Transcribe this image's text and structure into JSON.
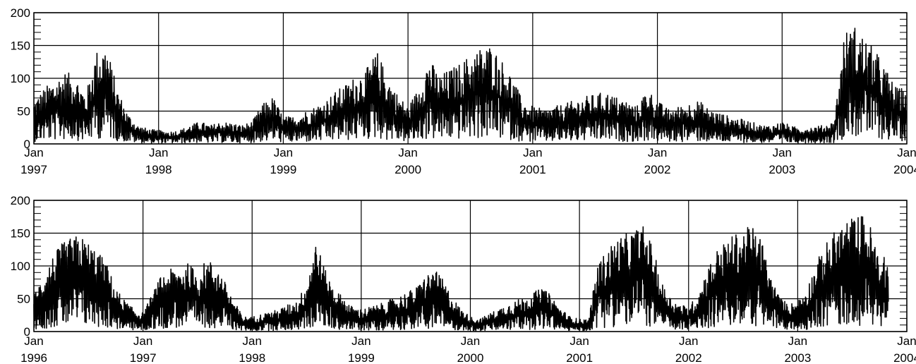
{
  "chart_data": [
    {
      "type": "line",
      "title": "",
      "xlabel": "",
      "ylabel": "",
      "xlim": [
        "1997-01",
        "2004-01"
      ],
      "ylim": [
        0,
        200
      ],
      "yticks": [
        0,
        50,
        100,
        150,
        200
      ],
      "xtick_labels": [
        {
          "month": "Jan",
          "year": "1997"
        },
        {
          "month": "Jan",
          "year": "1998"
        },
        {
          "month": "Jan",
          "year": "1999"
        },
        {
          "month": "Jan",
          "year": "2000"
        },
        {
          "month": "Jan",
          "year": "2001"
        },
        {
          "month": "Jan",
          "year": "2002"
        },
        {
          "month": "Jan",
          "year": "2003"
        },
        {
          "month": "Jan",
          "year": "2004"
        }
      ],
      "grid": true,
      "series": [
        {
          "values_approx_monthly": [
            {
              "x": "1997-01",
              "y": 35
            },
            {
              "x": "1997-02",
              "y": 45
            },
            {
              "x": "1997-03",
              "y": 52
            },
            {
              "x": "1997-04",
              "y": 58
            },
            {
              "x": "1997-05",
              "y": 55
            },
            {
              "x": "1997-06",
              "y": 40
            },
            {
              "x": "1997-07",
              "y": 75
            },
            {
              "x": "1997-08",
              "y": 80
            },
            {
              "x": "1997-09",
              "y": 45
            },
            {
              "x": "1997-10",
              "y": 25
            },
            {
              "x": "1997-11",
              "y": 15
            },
            {
              "x": "1997-12",
              "y": 12
            },
            {
              "x": "1998-01",
              "y": 11
            },
            {
              "x": "1998-02",
              "y": 10
            },
            {
              "x": "1998-03",
              "y": 11
            },
            {
              "x": "1998-04",
              "y": 15
            },
            {
              "x": "1998-05",
              "y": 18
            },
            {
              "x": "1998-06",
              "y": 15
            },
            {
              "x": "1998-07",
              "y": 18
            },
            {
              "x": "1998-08",
              "y": 17
            },
            {
              "x": "1998-09",
              "y": 15
            },
            {
              "x": "1998-10",
              "y": 18
            },
            {
              "x": "1998-11",
              "y": 32
            },
            {
              "x": "1998-12",
              "y": 38
            },
            {
              "x": "1999-01",
              "y": 22
            },
            {
              "x": "1999-02",
              "y": 22
            },
            {
              "x": "1999-03",
              "y": 26
            },
            {
              "x": "1999-04",
              "y": 30
            },
            {
              "x": "1999-05",
              "y": 35
            },
            {
              "x": "1999-06",
              "y": 42
            },
            {
              "x": "1999-07",
              "y": 48
            },
            {
              "x": "1999-08",
              "y": 55
            },
            {
              "x": "1999-09",
              "y": 60
            },
            {
              "x": "1999-10",
              "y": 75
            },
            {
              "x": "1999-11",
              "y": 55
            },
            {
              "x": "1999-12",
              "y": 40
            },
            {
              "x": "2000-01",
              "y": 30
            },
            {
              "x": "2000-02",
              "y": 45
            },
            {
              "x": "2000-03",
              "y": 70
            },
            {
              "x": "2000-04",
              "y": 55
            },
            {
              "x": "2000-05",
              "y": 60
            },
            {
              "x": "2000-06",
              "y": 65
            },
            {
              "x": "2000-07",
              "y": 72
            },
            {
              "x": "2000-08",
              "y": 78
            },
            {
              "x": "2000-09",
              "y": 80
            },
            {
              "x": "2000-10",
              "y": 68
            },
            {
              "x": "2000-11",
              "y": 55
            },
            {
              "x": "2000-12",
              "y": 35
            },
            {
              "x": "2001-01",
              "y": 30
            },
            {
              "x": "2001-02",
              "y": 28
            },
            {
              "x": "2001-03",
              "y": 30
            },
            {
              "x": "2001-04",
              "y": 32
            },
            {
              "x": "2001-05",
              "y": 35
            },
            {
              "x": "2001-06",
              "y": 38
            },
            {
              "x": "2001-07",
              "y": 40
            },
            {
              "x": "2001-08",
              "y": 42
            },
            {
              "x": "2001-09",
              "y": 38
            },
            {
              "x": "2001-10",
              "y": 35
            },
            {
              "x": "2001-11",
              "y": 30
            },
            {
              "x": "2001-12",
              "y": 45
            },
            {
              "x": "2002-01",
              "y": 35
            },
            {
              "x": "2002-02",
              "y": 28
            },
            {
              "x": "2002-03",
              "y": 30
            },
            {
              "x": "2002-04",
              "y": 33
            },
            {
              "x": "2002-05",
              "y": 35
            },
            {
              "x": "2002-06",
              "y": 28
            },
            {
              "x": "2002-07",
              "y": 25
            },
            {
              "x": "2002-08",
              "y": 22
            },
            {
              "x": "2002-09",
              "y": 20
            },
            {
              "x": "2002-10",
              "y": 18
            },
            {
              "x": "2002-11",
              "y": 15
            },
            {
              "x": "2002-12",
              "y": 15
            },
            {
              "x": "2003-01",
              "y": 18
            },
            {
              "x": "2003-02",
              "y": 14
            },
            {
              "x": "2003-03",
              "y": 13
            },
            {
              "x": "2003-04",
              "y": 14
            },
            {
              "x": "2003-05",
              "y": 15
            },
            {
              "x": "2003-06",
              "y": 18
            },
            {
              "x": "2003-07",
              "y": 90
            },
            {
              "x": "2003-08",
              "y": 95
            },
            {
              "x": "2003-09",
              "y": 85
            },
            {
              "x": "2003-10",
              "y": 75
            },
            {
              "x": "2003-11",
              "y": 60
            },
            {
              "x": "2003-12",
              "y": 45
            }
          ]
        }
      ]
    },
    {
      "type": "line",
      "title": "",
      "xlabel": "",
      "ylabel": "",
      "xlim": [
        "1996-01",
        "2004-01"
      ],
      "ylim": [
        0,
        200
      ],
      "yticks": [
        0,
        50,
        100,
        150,
        200
      ],
      "xtick_labels": [
        {
          "month": "Jan",
          "year": "1996"
        },
        {
          "month": "Jan",
          "year": "1997"
        },
        {
          "month": "Jan",
          "year": "1998"
        },
        {
          "month": "Jan",
          "year": "1999"
        },
        {
          "month": "Jan",
          "year": "2000"
        },
        {
          "month": "Jan",
          "year": "2001"
        },
        {
          "month": "Jan",
          "year": "2002"
        },
        {
          "month": "Jan",
          "year": "2003"
        },
        {
          "month": "Jan",
          "year": "2004"
        }
      ],
      "grid": true,
      "series": [
        {
          "values_approx_monthly": [
            {
              "x": "1996-01",
              "y": 30
            },
            {
              "x": "1996-02",
              "y": 45
            },
            {
              "x": "1996-03",
              "y": 60
            },
            {
              "x": "1996-04",
              "y": 70
            },
            {
              "x": "1996-05",
              "y": 75
            },
            {
              "x": "1996-06",
              "y": 78
            },
            {
              "x": "1996-07",
              "y": 72
            },
            {
              "x": "1996-08",
              "y": 65
            },
            {
              "x": "1996-09",
              "y": 55
            },
            {
              "x": "1996-10",
              "y": 35
            },
            {
              "x": "1996-11",
              "y": 25
            },
            {
              "x": "1996-12",
              "y": 18
            },
            {
              "x": "1997-01",
              "y": 15
            },
            {
              "x": "1997-02",
              "y": 30
            },
            {
              "x": "1997-03",
              "y": 45
            },
            {
              "x": "1997-04",
              "y": 50
            },
            {
              "x": "1997-05",
              "y": 52
            },
            {
              "x": "1997-06",
              "y": 55
            },
            {
              "x": "1997-07",
              "y": 48
            },
            {
              "x": "1997-08",
              "y": 58
            },
            {
              "x": "1997-09",
              "y": 55
            },
            {
              "x": "1997-10",
              "y": 40
            },
            {
              "x": "1997-11",
              "y": 25
            },
            {
              "x": "1997-12",
              "y": 12
            },
            {
              "x": "1998-01",
              "y": 12
            },
            {
              "x": "1998-02",
              "y": 14
            },
            {
              "x": "1998-03",
              "y": 16
            },
            {
              "x": "1998-04",
              "y": 18
            },
            {
              "x": "1998-05",
              "y": 22
            },
            {
              "x": "1998-06",
              "y": 25
            },
            {
              "x": "1998-07",
              "y": 40
            },
            {
              "x": "1998-08",
              "y": 75
            },
            {
              "x": "1998-09",
              "y": 50
            },
            {
              "x": "1998-10",
              "y": 35
            },
            {
              "x": "1998-11",
              "y": 28
            },
            {
              "x": "1998-12",
              "y": 20
            },
            {
              "x": "1999-01",
              "y": 18
            },
            {
              "x": "1999-02",
              "y": 20
            },
            {
              "x": "1999-03",
              "y": 22
            },
            {
              "x": "1999-04",
              "y": 25
            },
            {
              "x": "1999-05",
              "y": 28
            },
            {
              "x": "1999-06",
              "y": 32
            },
            {
              "x": "1999-07",
              "y": 35
            },
            {
              "x": "1999-08",
              "y": 45
            },
            {
              "x": "1999-09",
              "y": 50
            },
            {
              "x": "1999-10",
              "y": 42
            },
            {
              "x": "1999-11",
              "y": 28
            },
            {
              "x": "1999-12",
              "y": 18
            },
            {
              "x": "2000-01",
              "y": 12
            },
            {
              "x": "2000-02",
              "y": 10
            },
            {
              "x": "2000-03",
              "y": 14
            },
            {
              "x": "2000-04",
              "y": 18
            },
            {
              "x": "2000-05",
              "y": 22
            },
            {
              "x": "2000-06",
              "y": 25
            },
            {
              "x": "2000-07",
              "y": 28
            },
            {
              "x": "2000-08",
              "y": 32
            },
            {
              "x": "2000-09",
              "y": 35
            },
            {
              "x": "2000-10",
              "y": 28
            },
            {
              "x": "2000-11",
              "y": 18
            },
            {
              "x": "2000-12",
              "y": 12
            },
            {
              "x": "2001-01",
              "y": 10
            },
            {
              "x": "2001-02",
              "y": 10
            },
            {
              "x": "2001-03",
              "y": 55
            },
            {
              "x": "2001-04",
              "y": 65
            },
            {
              "x": "2001-05",
              "y": 75
            },
            {
              "x": "2001-06",
              "y": 78
            },
            {
              "x": "2001-07",
              "y": 82
            },
            {
              "x": "2001-08",
              "y": 85
            },
            {
              "x": "2001-09",
              "y": 70
            },
            {
              "x": "2001-10",
              "y": 40
            },
            {
              "x": "2001-11",
              "y": 28
            },
            {
              "x": "2001-12",
              "y": 22
            },
            {
              "x": "2002-01",
              "y": 20
            },
            {
              "x": "2002-02",
              "y": 30
            },
            {
              "x": "2002-03",
              "y": 50
            },
            {
              "x": "2002-04",
              "y": 65
            },
            {
              "x": "2002-05",
              "y": 72
            },
            {
              "x": "2002-06",
              "y": 78
            },
            {
              "x": "2002-07",
              "y": 82
            },
            {
              "x": "2002-08",
              "y": 85
            },
            {
              "x": "2002-09",
              "y": 75
            },
            {
              "x": "2002-10",
              "y": 45
            },
            {
              "x": "2002-11",
              "y": 28
            },
            {
              "x": "2002-12",
              "y": 22
            },
            {
              "x": "2003-01",
              "y": 25
            },
            {
              "x": "2003-02",
              "y": 35
            },
            {
              "x": "2003-03",
              "y": 55
            },
            {
              "x": "2003-04",
              "y": 70
            },
            {
              "x": "2003-05",
              "y": 80
            },
            {
              "x": "2003-06",
              "y": 88
            },
            {
              "x": "2003-07",
              "y": 92
            },
            {
              "x": "2003-08",
              "y": 95
            },
            {
              "x": "2003-09",
              "y": 85
            },
            {
              "x": "2003-10",
              "y": 60
            }
          ]
        }
      ]
    }
  ]
}
